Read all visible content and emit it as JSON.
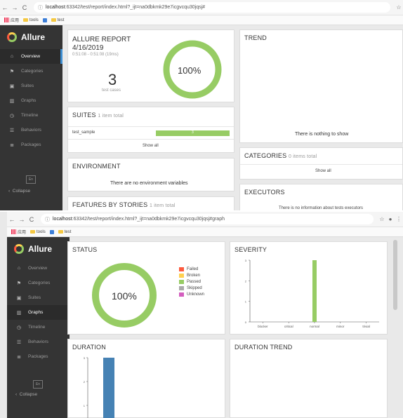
{
  "browser1": {
    "url_host": "localhost",
    "url_rest": ":63342/test/report/index.html?_ijt=na0dbkmk29e7icgvcqu30jqsj#",
    "bookmarks": [
      "应用",
      "tools",
      "test"
    ]
  },
  "browser2": {
    "url_host": "localhost",
    "url_rest": ":63342/test/report/index.html?_ijt=na0dbkmk29e7icgvcqu30jqsj#graph",
    "bookmarks": [
      "应用",
      "tools",
      "test"
    ]
  },
  "sidebar": {
    "brand": "Allure",
    "items": [
      {
        "label": "Overview",
        "icon": "home-icon"
      },
      {
        "label": "Categories",
        "icon": "flag-icon"
      },
      {
        "label": "Suites",
        "icon": "briefcase-icon"
      },
      {
        "label": "Graphs",
        "icon": "bar-chart-icon"
      },
      {
        "label": "Timeline",
        "icon": "clock-icon"
      },
      {
        "label": "Behaviors",
        "icon": "list-icon"
      },
      {
        "label": "Packages",
        "icon": "packages-icon"
      }
    ],
    "lang": "En",
    "collapse": "Collapse"
  },
  "overview": {
    "report_title": "ALLURE REPORT",
    "report_date": "4/16/2019",
    "report_time": "0:51:08 - 0:51:08 (19ms)",
    "test_count": "3",
    "test_cases_label": "test cases",
    "percent": "100%",
    "trend_title": "TREND",
    "trend_empty": "There is nothing to show",
    "suites_title": "SUITES",
    "suites_sub": "1 item total",
    "suite_name": "test_sample",
    "suite_count": "3",
    "show_all": "Show all",
    "categories_title": "CATEGORIES",
    "categories_sub": "0 items total",
    "environment_title": "ENVIRONMENT",
    "environment_empty": "There are no environment variables",
    "executors_title": "EXECUTORS",
    "executors_empty": "There is no information about tests executors",
    "features_title": "FEATURES BY STORIES",
    "features_sub": "1 item total"
  },
  "graphs": {
    "status_title": "STATUS",
    "status_percent": "100%",
    "legend": [
      {
        "label": "Failed",
        "color": "#fd5a3e"
      },
      {
        "label": "Broken",
        "color": "#ffd050"
      },
      {
        "label": "Passed",
        "color": "#97cc64"
      },
      {
        "label": "Skipped",
        "color": "#aaaaaa"
      },
      {
        "label": "Unknown",
        "color": "#d35ebe"
      }
    ],
    "severity_title": "SEVERITY",
    "severity_categories": [
      "blocker",
      "critical",
      "normal",
      "minor",
      "trivial"
    ],
    "severity_ticks": [
      "0",
      "1",
      "2",
      "3"
    ],
    "duration_title": "DURATION",
    "duration_ticks": [
      "1",
      "2",
      "3"
    ],
    "duration_trend_title": "DURATION TREND"
  },
  "chart_data": [
    {
      "type": "pie",
      "title": "STATUS",
      "categories": [
        "Failed",
        "Broken",
        "Passed",
        "Skipped",
        "Unknown"
      ],
      "values": [
        0,
        0,
        3,
        0,
        0
      ]
    },
    {
      "type": "bar",
      "title": "SEVERITY",
      "categories": [
        "blocker",
        "critical",
        "normal",
        "minor",
        "trivial"
      ],
      "values": [
        0,
        0,
        3,
        0,
        0
      ],
      "ylim": [
        0,
        3
      ]
    },
    {
      "type": "bar",
      "title": "DURATION",
      "categories": [
        ""
      ],
      "values": [
        3
      ],
      "ylim": [
        0,
        3
      ]
    }
  ],
  "colors": {
    "passed": "#97cc64",
    "sidebar": "#343434",
    "accent": "#3f8fd2",
    "duration_bar": "#4682b4"
  }
}
